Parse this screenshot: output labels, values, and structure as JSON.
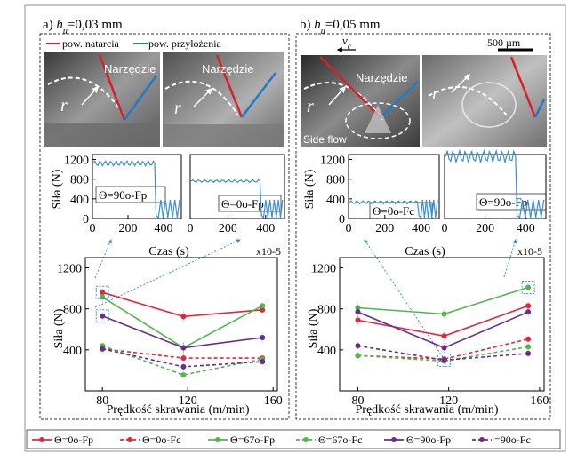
{
  "panels": [
    {
      "letter": "a)",
      "hu_value": "=0,03 mm",
      "label_rake": "pow. natarcia",
      "label_flank": "pow. przyłożenia",
      "tool_label": "Narzędzie",
      "radius_label": "r"
    },
    {
      "letter": "b)",
      "hu_value": "=0,05 mm",
      "vc_label": "v",
      "vc_sub": "c",
      "scale_label": "500 µm",
      "tool_label": "Narzędzie",
      "radius_label": "r",
      "side_flow_label": "Side flow"
    }
  ],
  "force_axis_label": "Siła (N)",
  "time_axis_label": "Czas (s)",
  "time_exponent": "x10-5",
  "speed_axis_label": "Prędkość skrawania (m/min)",
  "hu_symbol": "h",
  "hu_sub": "u",
  "inset_labels": {
    "a_left": "Θ=90o-Fp",
    "a_right": "Θ=0o-Fp",
    "b_left": "Θ=0o-Fc",
    "b_right": "Θ=90o-Fp"
  },
  "colors": {
    "red": "#e8243a",
    "green": "#4db848",
    "purple": "#6a2c8c",
    "trace": "#3d8fd0",
    "rake_line": "#d3222a",
    "flank_line": "#1f7ac8"
  },
  "legend": [
    {
      "label": "Θ=0o-Fp",
      "color": "#e8243a",
      "dashed": false
    },
    {
      "label": "Θ=0o-Fc",
      "color": "#e8243a",
      "dashed": true
    },
    {
      "label": "Θ=67o-Fp",
      "color": "#4db848",
      "dashed": false
    },
    {
      "label": "Θ=67o-Fc",
      "color": "#4db848",
      "dashed": true
    },
    {
      "label": "Θ=90o-Fp",
      "color": "#6a2c8c",
      "dashed": false
    },
    {
      "label": "=90o-Fc",
      "color": "#6a2c8c",
      "dashed": true
    }
  ],
  "chart_data": [
    {
      "type": "line",
      "panel": "a-inset-left",
      "x_ticks": [
        "0",
        "200",
        "400"
      ],
      "y_ticks": [
        "0",
        "400",
        "800",
        "1200"
      ],
      "xlim": [
        0,
        500
      ],
      "ylim": [
        0,
        1300
      ],
      "trace": {
        "level": 1120,
        "ripple": 50,
        "end": 350
      }
    },
    {
      "type": "line",
      "panel": "a-inset-right",
      "x_ticks": [
        "0",
        "200",
        "400"
      ],
      "xlim": [
        0,
        500
      ],
      "ylim": [
        0,
        1300
      ],
      "trace": {
        "level": 760,
        "ripple": 25,
        "end": 370
      }
    },
    {
      "type": "line",
      "panel": "b-inset-left",
      "x_ticks": [
        "0",
        "200",
        "400"
      ],
      "y_ticks": [
        "0",
        "400",
        "800",
        "1200"
      ],
      "xlim": [
        0,
        500
      ],
      "ylim": [
        0,
        1300
      ],
      "trace": {
        "level": 330,
        "ripple": 30,
        "end": 380
      }
    },
    {
      "type": "line",
      "panel": "b-inset-right",
      "x_ticks": [
        "0",
        "200",
        "400"
      ],
      "xlim": [
        0,
        500
      ],
      "ylim": [
        0,
        1300
      ],
      "trace": {
        "level": 1260,
        "ripple": 120,
        "end": 350
      }
    },
    {
      "type": "line",
      "panel": "a-main",
      "x": [
        80,
        118,
        155
      ],
      "x_ticks": [
        "80",
        "120",
        "160"
      ],
      "y_ticks": [
        "400",
        "800",
        "1200"
      ],
      "xlim": [
        72,
        162
      ],
      "ylim": [
        0,
        1300
      ],
      "series": [
        {
          "color": "#e8243a",
          "dashed": false,
          "values": [
            960,
            725,
            790
          ],
          "err": [
            40,
            50,
            45
          ]
        },
        {
          "color": "#e8243a",
          "dashed": true,
          "values": [
            410,
            320,
            320
          ],
          "err": [
            35,
            40,
            35
          ]
        },
        {
          "color": "#4db848",
          "dashed": false,
          "values": [
            915,
            420,
            830
          ],
          "err": [
            50,
            50,
            45
          ]
        },
        {
          "color": "#4db848",
          "dashed": true,
          "values": [
            440,
            155,
            310
          ],
          "err": [
            35,
            30,
            35
          ]
        },
        {
          "color": "#6a2c8c",
          "dashed": false,
          "values": [
            730,
            420,
            520
          ],
          "err": [
            40,
            60,
            50
          ]
        },
        {
          "color": "#6a2c8c",
          "dashed": true,
          "values": [
            410,
            235,
            285
          ],
          "err": [
            30,
            30,
            30
          ]
        }
      ]
    },
    {
      "type": "line",
      "panel": "b-main",
      "x": [
        80,
        118,
        155
      ],
      "x_ticks": [
        "80",
        "120",
        "160"
      ],
      "y_ticks": [
        "400",
        "800",
        "1200"
      ],
      "xlim": [
        72,
        162
      ],
      "ylim": [
        0,
        1300
      ],
      "series": [
        {
          "color": "#e8243a",
          "dashed": false,
          "values": [
            690,
            535,
            830
          ],
          "err": [
            40,
            40,
            40
          ]
        },
        {
          "color": "#e8243a",
          "dashed": true,
          "values": [
            345,
            310,
            505
          ],
          "err": [
            30,
            30,
            35
          ]
        },
        {
          "color": "#4db848",
          "dashed": false,
          "values": [
            810,
            750,
            1010
          ],
          "err": [
            50,
            50,
            45
          ]
        },
        {
          "color": "#4db848",
          "dashed": true,
          "values": [
            345,
            290,
            430
          ],
          "err": [
            30,
            30,
            35
          ]
        },
        {
          "color": "#6a2c8c",
          "dashed": false,
          "values": [
            770,
            420,
            770
          ],
          "err": [
            40,
            50,
            45
          ]
        },
        {
          "color": "#6a2c8c",
          "dashed": true,
          "values": [
            440,
            300,
            365
          ],
          "err": [
            30,
            30,
            30
          ]
        }
      ]
    }
  ]
}
